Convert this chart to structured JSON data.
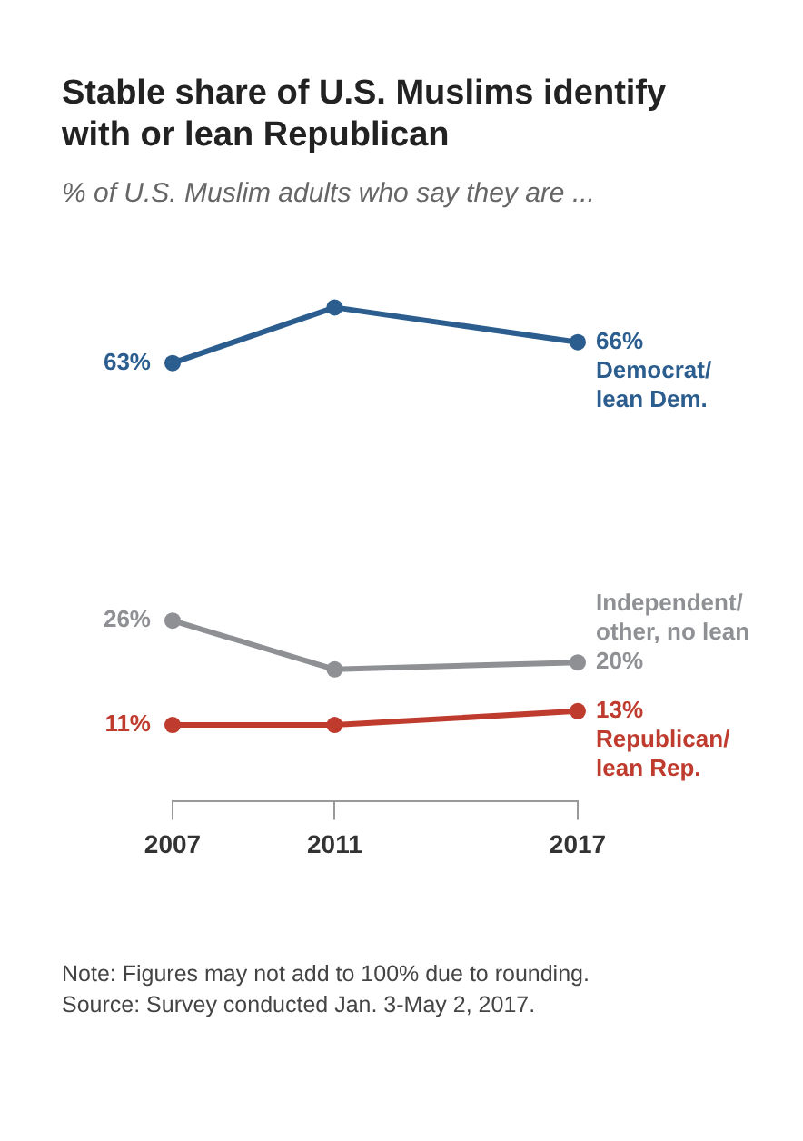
{
  "chart_data": {
    "type": "line",
    "title": "Stable share of U.S. Muslims identify with or lean Republican",
    "subtitle": "% of U.S. Muslim adults who say they are ...",
    "x": [
      2007,
      2011,
      2017
    ],
    "xlim": [
      2007,
      2017
    ],
    "xticks": [
      2007,
      2011,
      2017
    ],
    "marker": "circle",
    "grid": false,
    "legend": false,
    "tick_labels": "x",
    "series": [
      {
        "name": "Democrat/ lean Dem.",
        "color": "#2b5d8f",
        "values": [
          63,
          71,
          66
        ],
        "value_labels": [
          "63%",
          null,
          "66%"
        ]
      },
      {
        "name": "Independent/ other, no lean",
        "color": "#8e9094",
        "values": [
          26,
          19,
          20
        ],
        "value_labels": [
          "26%",
          null,
          "20%"
        ]
      },
      {
        "name": "Republican/ lean Rep.",
        "color": "#bf3b2e",
        "values": [
          11,
          11,
          13
        ],
        "value_labels": [
          "11%",
          null,
          "13%"
        ]
      }
    ],
    "annotations": [
      "Note: Figures may not add to 100% due to rounding.",
      "Source: Survey conducted Jan. 3-May 2, 2017."
    ]
  }
}
